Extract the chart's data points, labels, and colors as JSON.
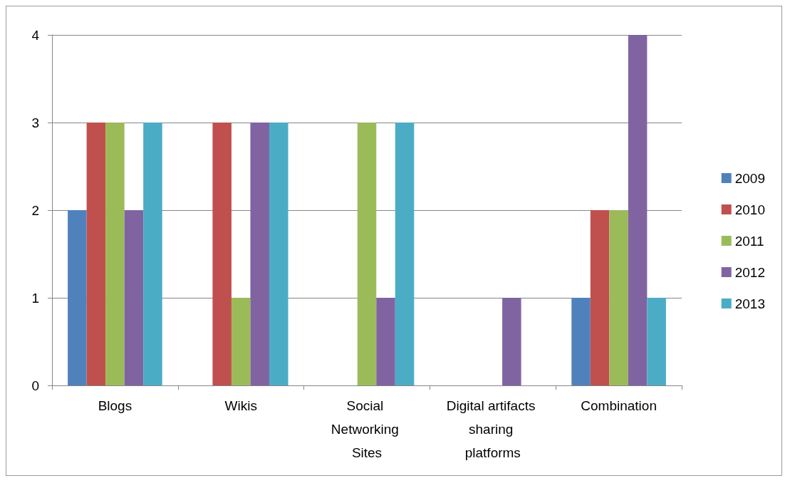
{
  "chart_data": {
    "type": "bar",
    "categories": [
      "Blogs",
      "Wikis",
      "Social Networking Sites",
      "Digital artifacts sharing platforms",
      "Combination"
    ],
    "series": [
      {
        "name": "2009",
        "color": "#4f81bd",
        "values": [
          2,
          0,
          0,
          0,
          1
        ]
      },
      {
        "name": "2010",
        "color": "#c0504d",
        "values": [
          3,
          3,
          0,
          0,
          2
        ]
      },
      {
        "name": "2011",
        "color": "#9bbb59",
        "values": [
          3,
          1,
          3,
          0,
          2
        ]
      },
      {
        "name": "2012",
        "color": "#8064a2",
        "values": [
          2,
          3,
          1,
          1,
          4
        ]
      },
      {
        "name": "2013",
        "color": "#4bacc6",
        "values": [
          3,
          3,
          3,
          0,
          1
        ]
      }
    ],
    "ylim": [
      0,
      4
    ],
    "yticks": [
      0,
      1,
      2,
      3,
      4
    ],
    "grid": "y",
    "legend": "right"
  }
}
